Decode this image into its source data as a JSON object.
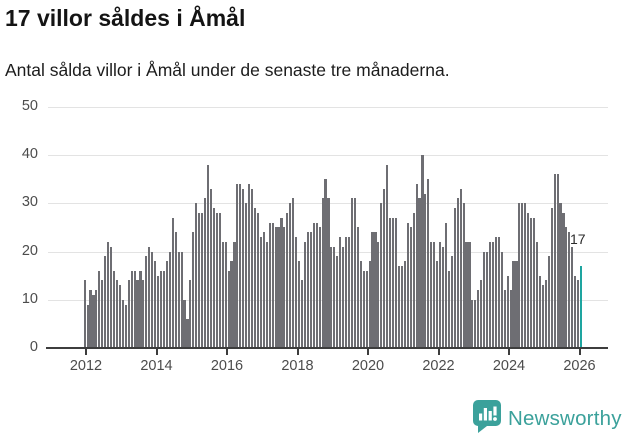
{
  "header": {
    "title": "17 villor såldes i Åmål",
    "subtitle": "Antal sålda villor i Åmål under de senaste tre månaderna."
  },
  "chart_data": {
    "type": "bar",
    "title": "17 villor såldes i Åmål",
    "xlabel": "",
    "ylabel": "",
    "x_monthly_from": "2012-01",
    "x_monthly_to": "2026-02",
    "x_tick_years": [
      2012,
      2014,
      2016,
      2018,
      2020,
      2022,
      2024,
      2026
    ],
    "y_ticks": [
      0,
      10,
      20,
      30,
      40,
      50
    ],
    "ylim": [
      0,
      50
    ],
    "grid": true,
    "bar_color": "#6e6e73",
    "values": [
      14,
      9,
      12,
      11,
      12,
      16,
      14,
      19,
      22,
      21,
      16,
      14,
      13,
      10,
      9,
      14,
      16,
      16,
      14,
      16,
      14,
      19,
      21,
      20,
      18,
      15,
      16,
      16,
      18,
      20,
      27,
      24,
      20,
      20,
      10,
      6,
      14,
      24,
      30,
      28,
      28,
      31,
      38,
      33,
      29,
      28,
      28,
      22,
      22,
      16,
      18,
      22,
      34,
      34,
      33,
      30,
      34,
      33,
      29,
      28,
      23,
      24,
      22,
      26,
      26,
      25,
      25,
      27,
      25,
      28,
      30,
      31,
      23,
      18,
      14,
      22,
      24,
      24,
      26,
      26,
      25,
      31,
      35,
      31,
      21,
      21,
      19,
      23,
      21,
      23,
      23,
      31,
      31,
      25,
      18,
      16,
      16,
      18,
      24,
      24,
      22,
      30,
      33,
      38,
      27,
      27,
      27,
      17,
      17,
      18,
      26,
      25,
      28,
      34,
      31,
      40,
      32,
      35,
      22,
      22,
      18,
      22,
      21,
      26,
      16,
      19,
      29,
      31,
      33,
      30,
      22,
      22,
      10,
      10,
      12,
      14,
      20,
      20,
      22,
      22,
      23,
      23,
      20,
      12,
      15,
      12,
      18,
      18,
      30,
      30,
      30,
      28,
      27,
      27,
      22,
      15,
      13,
      14,
      19,
      29,
      36,
      36,
      30,
      28,
      25,
      24,
      21,
      15,
      14,
      17
    ],
    "highlight": {
      "index": 169,
      "value": 17,
      "label": "17",
      "color": "#1ea5a0"
    }
  },
  "footer": {
    "brand": "Newsworthy",
    "brand_color": "#3ba19b",
    "logo_icon": "bar-chart-speech-bubble"
  },
  "colors": {
    "background": "#ffffff",
    "bar": "#6e6e73",
    "highlight": "#1ea5a0",
    "axis": "#3d3d3d",
    "grid": "#e3e3e3",
    "tick_text": "#4c4c4c"
  }
}
